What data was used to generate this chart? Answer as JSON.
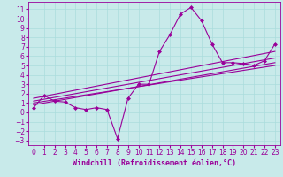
{
  "title": "",
  "xlabel": "Windchill (Refroidissement éolien,°C)",
  "background_color": "#c8eaea",
  "line_color": "#990099",
  "xlim": [
    -0.5,
    23.5
  ],
  "ylim": [
    -3.5,
    11.8
  ],
  "xticks": [
    0,
    1,
    2,
    3,
    4,
    5,
    6,
    7,
    8,
    9,
    10,
    11,
    12,
    13,
    14,
    15,
    16,
    17,
    18,
    19,
    20,
    21,
    22,
    23
  ],
  "yticks": [
    -3,
    -2,
    -1,
    0,
    1,
    2,
    3,
    4,
    5,
    6,
    7,
    8,
    9,
    10,
    11
  ],
  "grid_color": "#aadddd",
  "main_series": {
    "x": [
      0,
      1,
      2,
      3,
      4,
      5,
      6,
      7,
      8,
      9,
      10,
      11,
      12,
      13,
      14,
      15,
      16,
      17,
      18,
      19,
      20,
      21,
      22,
      23
    ],
    "y": [
      0.5,
      1.8,
      1.2,
      1.1,
      0.5,
      0.3,
      0.5,
      0.3,
      -2.8,
      1.5,
      3.0,
      3.0,
      6.5,
      8.3,
      10.5,
      11.2,
      9.8,
      7.3,
      5.3,
      5.3,
      5.2,
      5.0,
      5.5,
      7.3
    ]
  },
  "straight_lines": [
    {
      "x": [
        0,
        23
      ],
      "y": [
        1.5,
        6.5
      ]
    },
    {
      "x": [
        0,
        23
      ],
      "y": [
        1.2,
        5.8
      ]
    },
    {
      "x": [
        0,
        23
      ],
      "y": [
        0.8,
        5.3
      ]
    },
    {
      "x": [
        0,
        23
      ],
      "y": [
        1.0,
        5.0
      ]
    }
  ],
  "marker": "D",
  "markersize": 2.0,
  "linewidth": 0.8,
  "xlabel_fontsize": 6,
  "tick_fontsize": 5.5
}
